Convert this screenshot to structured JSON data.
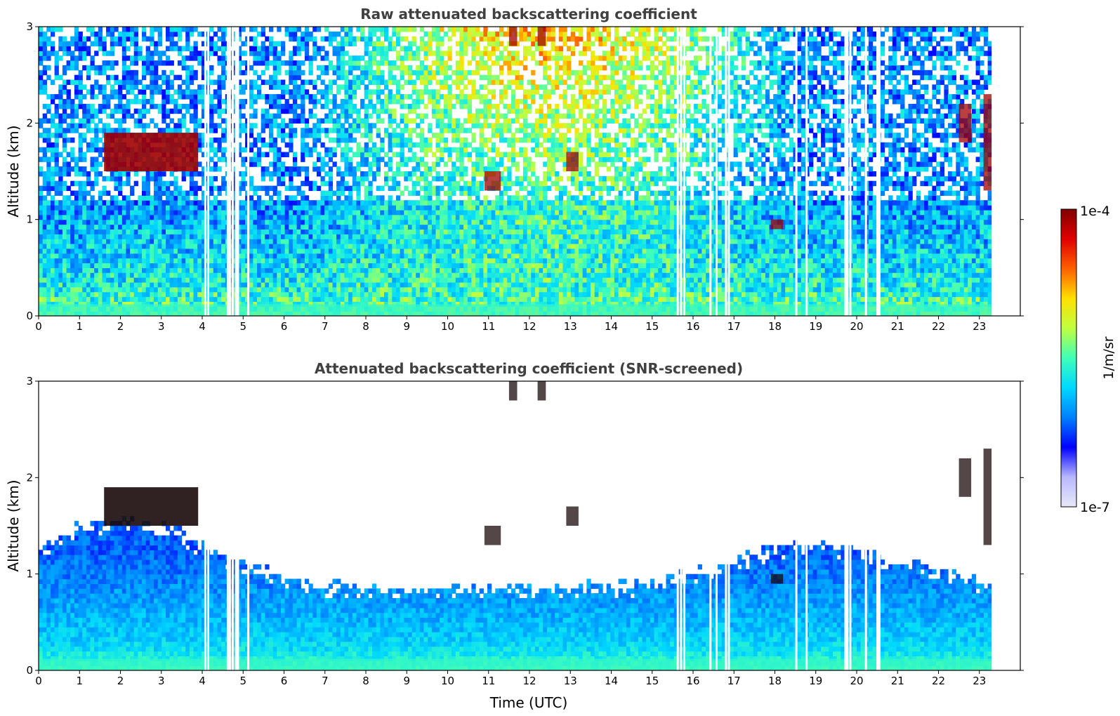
{
  "chart_data": [
    {
      "type": "heatmap",
      "title": "Raw attenuated backscattering coefficient",
      "xlabel": "",
      "ylabel": "Altitude (km)",
      "xlim": [
        0,
        24
      ],
      "ylim": [
        0,
        3
      ],
      "xticks": [
        "0",
        "1",
        "2",
        "3",
        "4",
        "5",
        "6",
        "7",
        "8",
        "9",
        "10",
        "11",
        "12",
        "13",
        "14",
        "15",
        "16",
        "17",
        "18",
        "19",
        "20",
        "21",
        "22",
        "23"
      ],
      "yticks": [
        "0",
        "1",
        "2",
        "3"
      ],
      "data_end_time": 23.3,
      "features": [
        {
          "kind": "cloud_layer",
          "name": "",
          "time": [
            1.6,
            3.9
          ],
          "altitude_km": [
            1.5,
            1.9
          ]
        },
        {
          "kind": "cloud_patch",
          "time": [
            10.9,
            11.3
          ],
          "altitude_km": [
            1.3,
            1.5
          ]
        },
        {
          "kind": "cloud_patch",
          "time": [
            11.5,
            11.7
          ],
          "altitude_km": [
            2.8,
            3.0
          ]
        },
        {
          "kind": "cloud_patch",
          "time": [
            12.2,
            12.4
          ],
          "altitude_km": [
            2.8,
            3.0
          ]
        },
        {
          "kind": "cloud_patch",
          "time": [
            12.9,
            13.2
          ],
          "altitude_km": [
            1.5,
            1.7
          ]
        },
        {
          "kind": "cloud_patch",
          "time": [
            17.9,
            18.2
          ],
          "altitude_km": [
            0.9,
            1.0
          ]
        },
        {
          "kind": "cloud_patch",
          "time": [
            22.5,
            22.8
          ],
          "altitude_km": [
            1.8,
            2.2
          ]
        },
        {
          "kind": "cloud_patch",
          "time": [
            23.1,
            23.3
          ],
          "altitude_km": [
            1.3,
            2.3
          ]
        }
      ],
      "gaps_utc": [
        4.05,
        4.12,
        4.6,
        4.65,
        4.72,
        4.8,
        4.85,
        5.1,
        15.6,
        15.68,
        15.76,
        16.4,
        16.55,
        16.78,
        16.85,
        18.5,
        18.75,
        19.7,
        19.75,
        19.82,
        20.2,
        20.48,
        20.53
      ]
    },
    {
      "type": "heatmap",
      "title": "Attenuated backscattering coefficient (SNR-screened)",
      "xlabel": "Time (UTC)",
      "ylabel": "Altitude (km)",
      "xlim": [
        0,
        24
      ],
      "ylim": [
        0,
        3
      ],
      "xticks": [
        "0",
        "1",
        "2",
        "3",
        "4",
        "5",
        "6",
        "7",
        "8",
        "9",
        "10",
        "11",
        "12",
        "13",
        "14",
        "15",
        "16",
        "17",
        "18",
        "19",
        "20",
        "21",
        "22",
        "23"
      ],
      "yticks": [
        "0",
        "1",
        "2",
        "3"
      ],
      "data_end_time": 23.3
    }
  ],
  "colorbar": {
    "label": "1/m/sr",
    "max_label": "1e-4",
    "min_label": "1e-7",
    "colormap": "jet",
    "colors": [
      "#e8e8f8",
      "#b8b8ff",
      "#0000ff",
      "#0080ff",
      "#00d8ff",
      "#40ffb8",
      "#c0ff40",
      "#ffe000",
      "#ff6000",
      "#e00000",
      "#800000"
    ]
  }
}
